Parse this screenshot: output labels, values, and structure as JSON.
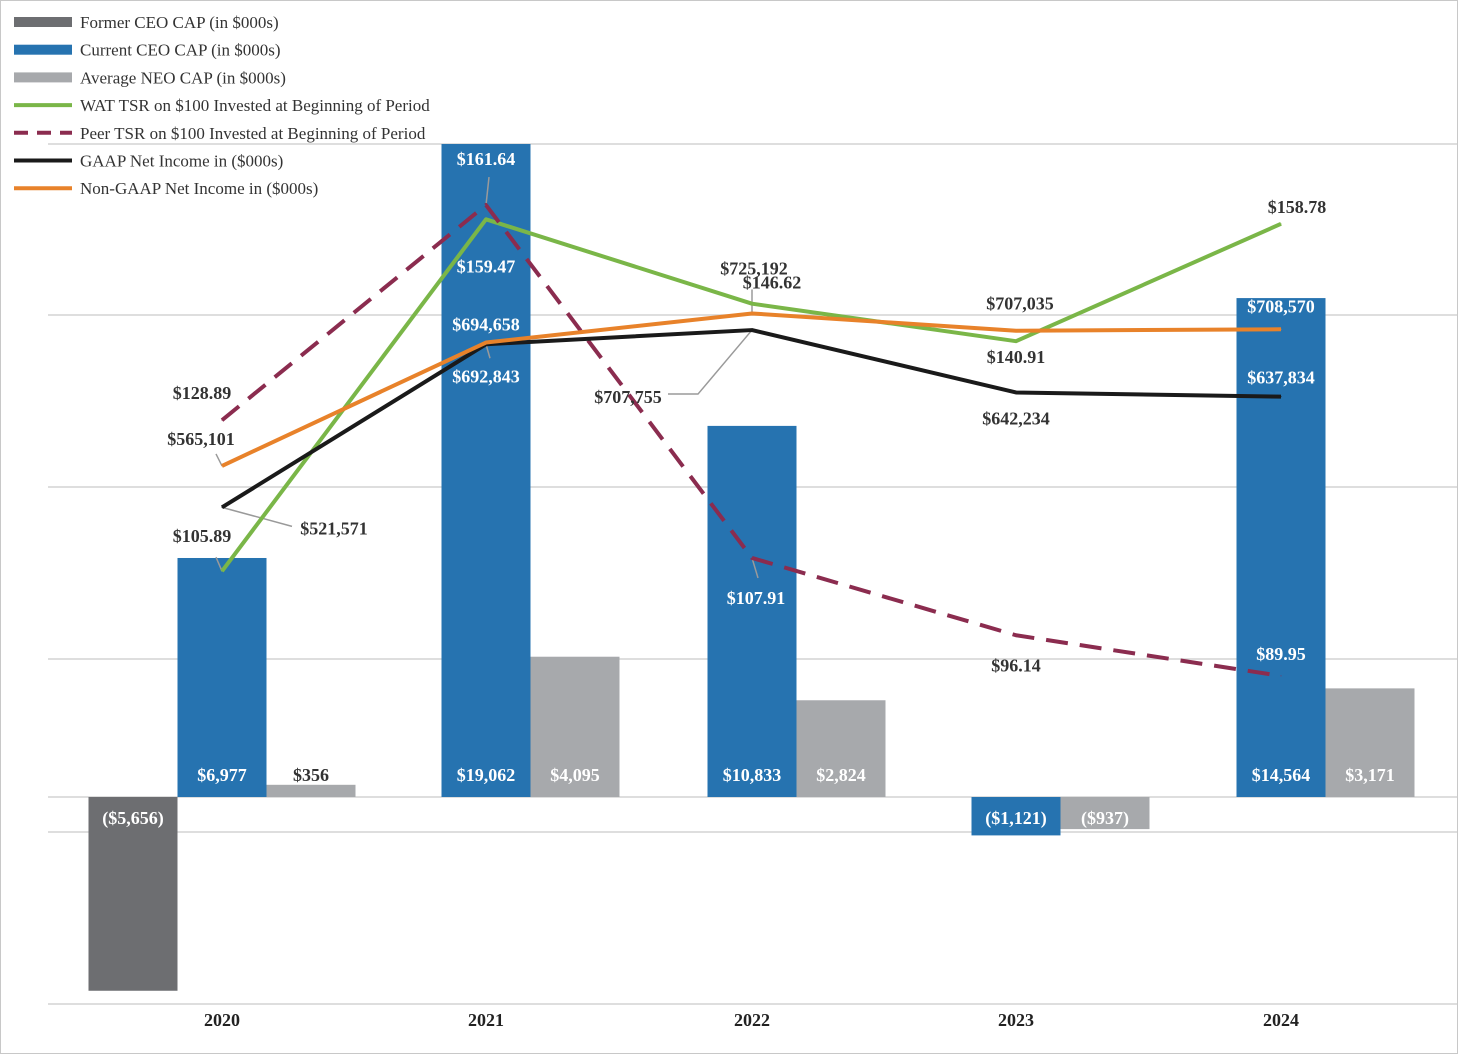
{
  "chart_data": {
    "type": "bar",
    "categories": [
      "2020",
      "2021",
      "2022",
      "2023",
      "2024"
    ],
    "series": [
      {
        "name": "Former CEO CAP (in $000s)",
        "kind": "bar",
        "color": "#6d6e71",
        "values": [
          -5656,
          null,
          null,
          null,
          null
        ],
        "labels": [
          "($5,656)",
          null,
          null,
          null,
          null
        ]
      },
      {
        "name": "Current CEO CAP (in $000s)",
        "kind": "bar",
        "color": "#2673b0",
        "values": [
          6977,
          19062,
          10833,
          -1121,
          14564
        ],
        "labels": [
          "$6,977",
          "$19,062",
          "$10,833",
          "($1,121)",
          "$14,564"
        ]
      },
      {
        "name": "Average NEO CAP (in $000s)",
        "kind": "bar",
        "color": "#a7a9ac",
        "values": [
          356,
          4095,
          2824,
          -937,
          3171
        ],
        "labels": [
          "$356",
          "$4,095",
          "$2,824",
          "($937)",
          "$3,171"
        ]
      },
      {
        "name": "WAT TSR on $100 Invested at Beginning of Period",
        "kind": "line",
        "color": "#7ab648",
        "dash": false,
        "values": [
          105.89,
          159.47,
          146.62,
          140.91,
          158.78
        ],
        "labels": [
          "$105.89",
          "$159.47",
          "$146.62",
          "$140.91",
          "$158.78"
        ]
      },
      {
        "name": "Peer TSR on $100 Invested at Beginning of Period",
        "kind": "line",
        "color": "#8b2c4f",
        "dash": true,
        "values": [
          128.89,
          161.64,
          107.91,
          96.14,
          89.95
        ],
        "labels": [
          "$128.89",
          "$161.64",
          "$107.91",
          "$96.14",
          "$89.95"
        ]
      },
      {
        "name": "GAAP Net Income in ($000s)",
        "kind": "line",
        "color": "#1a1a1a",
        "dash": false,
        "values": [
          521571,
          692843,
          707755,
          642234,
          637834
        ],
        "labels": [
          "$521,571",
          "$692,843",
          "$707,755",
          "$642,234",
          "$637,834"
        ]
      },
      {
        "name": "Non-GAAP Net Income in ($000s)",
        "kind": "line",
        "color": "#e8822a",
        "dash": false,
        "values": [
          565101,
          694658,
          725192,
          707035,
          708570
        ],
        "labels": [
          "$565,101",
          "$694,658",
          "$725,192",
          "$707,035",
          "$708,570"
        ]
      }
    ],
    "title": "",
    "xlabel": "",
    "ylabel": "",
    "cap_axis_range": [
      -11000,
      19062
    ],
    "tsr_axis_range": [
      40,
      172
    ],
    "net_income_axis_range": [
      0,
      900000
    ],
    "grid": true,
    "legend_position": "top-left"
  }
}
